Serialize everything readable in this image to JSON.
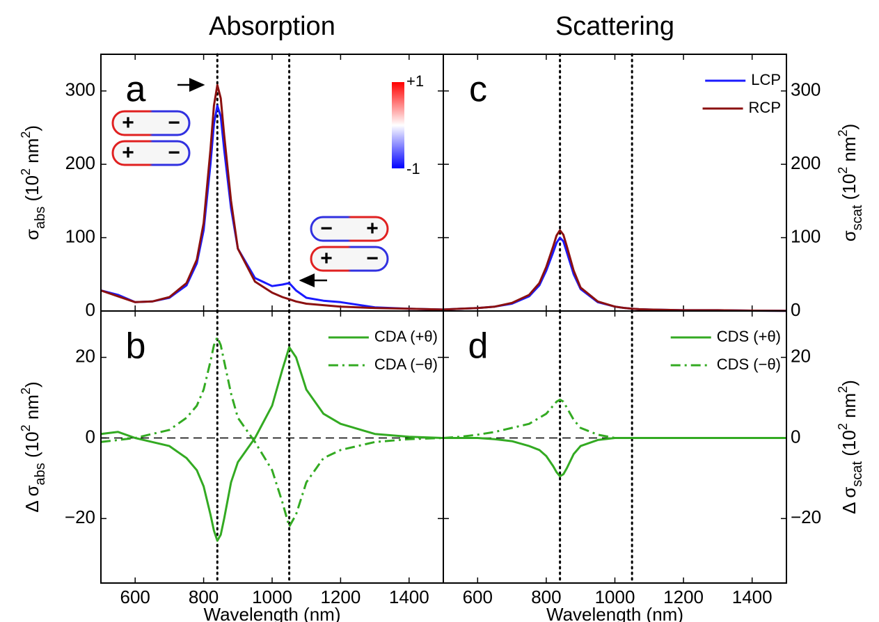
{
  "chart_data": [
    {
      "type": "line",
      "title": "Absorption",
      "label": "a",
      "x": [
        500,
        550,
        600,
        650,
        700,
        750,
        780,
        800,
        820,
        830,
        840,
        850,
        860,
        880,
        900,
        950,
        1000,
        1030,
        1050,
        1070,
        1100,
        1150,
        1200,
        1300,
        1400,
        1500
      ],
      "series": [
        {
          "color": "#1a1aff",
          "dash": "solid",
          "values": [
            28,
            22,
            12,
            13,
            18,
            35,
            65,
            110,
            200,
            255,
            280,
            265,
            220,
            140,
            85,
            45,
            34,
            36,
            38,
            28,
            18,
            14,
            12,
            5,
            3,
            2
          ]
        },
        {
          "color": "#8b1010",
          "dash": "solid",
          "values": [
            28,
            20,
            12,
            13,
            19,
            38,
            70,
            120,
            220,
            280,
            308,
            290,
            240,
            150,
            85,
            40,
            25,
            19,
            16,
            13,
            10,
            8,
            6,
            4,
            3,
            2
          ]
        }
      ],
      "xlim": [
        500,
        1500
      ],
      "xticks": [
        600,
        800,
        1000,
        1200,
        1400
      ],
      "xtick_labels": false,
      "ylim": [
        0,
        350
      ],
      "yticks": [
        0,
        100,
        200,
        300
      ],
      "yaxis_side": "left",
      "ylabel": [
        "σ",
        "abs",
        " (10",
        "2",
        " nm",
        "2",
        ")"
      ],
      "vlines": [
        840,
        1050
      ],
      "colorbar": [
        "+1",
        "-1"
      ],
      "insets": [
        [
          "+",
          "−"
        ],
        [
          "+",
          "−"
        ],
        [
          "−",
          "+"
        ],
        [
          "+",
          "−"
        ]
      ]
    },
    {
      "type": "line",
      "label": "b",
      "x": [
        500,
        550,
        600,
        650,
        700,
        750,
        780,
        800,
        820,
        830,
        840,
        850,
        860,
        880,
        900,
        950,
        1000,
        1030,
        1050,
        1070,
        1100,
        1150,
        1200,
        1300,
        1400,
        1500
      ],
      "series": [
        {
          "name": "CDA (+θ)",
          "color": "#33aa22",
          "dash": "solid",
          "values": [
            1,
            1.5,
            0,
            -1,
            -2,
            -5,
            -8,
            -12,
            -19,
            -23,
            -25.5,
            -24,
            -20,
            -11,
            -6,
            0,
            8,
            17,
            22.5,
            20,
            12,
            6,
            3.5,
            1,
            0.3,
            0
          ]
        },
        {
          "name": "CDA (−θ)",
          "color": "#33aa22",
          "dash": "dashdot",
          "values": [
            -1,
            -0.5,
            0,
            1,
            2,
            5,
            8,
            12,
            19,
            23,
            25,
            23,
            19,
            11,
            5,
            -1,
            -8,
            -16,
            -22,
            -19,
            -11,
            -5,
            -3,
            -1,
            -0.3,
            0
          ]
        }
      ],
      "xlim": [
        500,
        1500
      ],
      "xticks": [
        600,
        800,
        1000,
        1200,
        1400
      ],
      "xtick_labels": true,
      "xlabel": "Wavelength (nm)",
      "ylim": [
        -36,
        31.5
      ],
      "yticks": [
        {
          "value": -20,
          "label": "−20"
        },
        0,
        20
      ],
      "yaxis_side": "left",
      "ylabel": [
        "Δ σ",
        "abs",
        " (10",
        "2",
        " nm",
        "2",
        ")"
      ],
      "vlines": [
        840,
        1050
      ],
      "hline": 0
    },
    {
      "type": "line",
      "title": "Scattering",
      "label": "c",
      "x": [
        500,
        550,
        600,
        650,
        700,
        750,
        780,
        800,
        820,
        830,
        840,
        850,
        860,
        880,
        900,
        950,
        1000,
        1030,
        1050,
        1070,
        1100,
        1150,
        1200,
        1300,
        1400,
        1500
      ],
      "series": [
        {
          "name": "LCP",
          "color": "#1a1aff",
          "dash": "solid",
          "values": [
            2,
            3,
            4,
            6,
            10,
            20,
            35,
            55,
            80,
            93,
            100,
            95,
            80,
            50,
            30,
            12,
            6,
            4,
            3,
            2.5,
            2,
            1.5,
            1,
            1,
            0.5,
            0.3
          ]
        },
        {
          "name": "RCP",
          "color": "#8b1010",
          "dash": "solid",
          "values": [
            2,
            3,
            4,
            6,
            11,
            22,
            38,
            60,
            88,
            103,
            110,
            104,
            88,
            55,
            32,
            13,
            6,
            4,
            3,
            2.5,
            2,
            1.5,
            1,
            1,
            0.5,
            0.3
          ]
        }
      ],
      "xlim": [
        500,
        1500
      ],
      "xticks": [
        600,
        800,
        1000,
        1200,
        1400
      ],
      "xtick_labels": false,
      "ylim": [
        0,
        350
      ],
      "yticks": [
        0,
        100,
        200,
        300
      ],
      "yaxis_side": "right",
      "ylabel": [
        "σ",
        "scat",
        " (10",
        "2",
        " nm",
        "2",
        ")"
      ],
      "vlines": [
        840,
        1050
      ]
    },
    {
      "type": "line",
      "label": "d",
      "x": [
        500,
        550,
        600,
        650,
        700,
        750,
        780,
        800,
        820,
        830,
        840,
        850,
        860,
        880,
        900,
        950,
        1000,
        1030,
        1050,
        1070,
        1100,
        1150,
        1200,
        1300,
        1400,
        1500
      ],
      "series": [
        {
          "name": "CDS (+θ)",
          "color": "#33aa22",
          "dash": "solid",
          "values": [
            0,
            0,
            0,
            -0.3,
            -0.8,
            -2,
            -3,
            -4.5,
            -7,
            -8.5,
            -9.5,
            -9,
            -7.5,
            -4,
            -2,
            -0.5,
            0,
            0,
            0,
            0,
            0,
            0,
            0,
            0,
            0,
            0
          ]
        },
        {
          "name": "CDS (−θ)",
          "color": "#33aa22",
          "dash": "dashdot",
          "values": [
            0,
            0.3,
            0.8,
            1.5,
            2.5,
            3.5,
            5,
            6,
            8,
            9,
            9.5,
            9,
            7.5,
            4.5,
            2.5,
            0.8,
            0,
            0,
            0,
            0,
            0,
            0,
            0,
            0,
            0,
            0
          ]
        }
      ],
      "xlim": [
        500,
        1500
      ],
      "xticks": [
        600,
        800,
        1000,
        1200,
        1400
      ],
      "xtick_labels": true,
      "xlabel": "Wavelength (nm)",
      "ylim": [
        -36,
        31.5
      ],
      "yticks": [
        {
          "value": -20,
          "label": "−20"
        },
        0,
        20
      ],
      "yaxis_side": "right",
      "ylabel": [
        "Δ σ",
        "scat",
        " (10",
        "2",
        " nm",
        "2",
        ")"
      ],
      "vlines": [
        840,
        1050
      ],
      "hline": 0
    }
  ]
}
